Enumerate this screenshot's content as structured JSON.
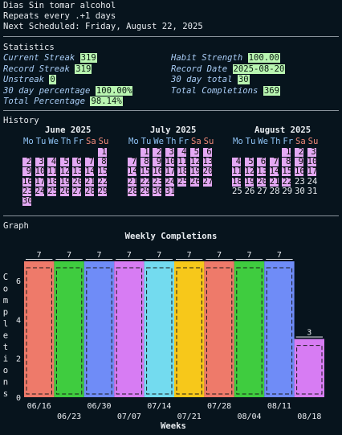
{
  "header": {
    "title": "Dias Sin tomar alcohol",
    "repeat": "Repeats every .+1 days",
    "next": "Next Scheduled: Friday, August 22, 2025"
  },
  "stats": {
    "section_title": "Statistics",
    "left": [
      {
        "label": "Current Streak",
        "value": "319"
      },
      {
        "label": "Record Streak",
        "value": "319"
      },
      {
        "label": "Unstreak",
        "value": "0"
      },
      {
        "label": "30 day percentage",
        "value": "100.00%"
      },
      {
        "label": "Total Percentage",
        "value": "98.14%"
      }
    ],
    "right": [
      {
        "label": "Habit Strength",
        "value": "100.00"
      },
      {
        "label": "Record Date",
        "value": "2025-08-20"
      },
      {
        "label": "30 day total",
        "value": "30"
      },
      {
        "label": "Total Completions",
        "value": "369"
      }
    ]
  },
  "history": {
    "section_title": "History",
    "dow": [
      "Mo",
      "Tu",
      "We",
      "Th",
      "Fr",
      "Sa",
      "Su"
    ],
    "months": [
      {
        "title": "June 2025",
        "start": 6,
        "days": 30,
        "done_through": 30
      },
      {
        "title": "July 2025",
        "start": 1,
        "days": 31,
        "done_through": 31
      },
      {
        "title": "August 2025",
        "start": 4,
        "days": 31,
        "done_through": 22
      }
    ]
  },
  "graph": {
    "section_title": "Graph"
  },
  "chart_data": {
    "type": "bar",
    "title": "Weekly Completions",
    "xlabel": "Weeks",
    "ylabel": "Completions",
    "categories": [
      "06/16",
      "06/23",
      "06/30",
      "07/07",
      "07/14",
      "07/21",
      "07/28",
      "08/04",
      "08/11",
      "08/18"
    ],
    "values": [
      7,
      7,
      7,
      7,
      7,
      7,
      7,
      7,
      7,
      3
    ],
    "colors": [
      "#ee7a6a",
      "#3fcc3f",
      "#6f8cf7",
      "#d77cf3",
      "#73dbef",
      "#f7c81a",
      "#ee7a6a",
      "#3fcc3f",
      "#6f8cf7",
      "#d77cf3"
    ],
    "yticks": [
      0,
      2,
      4,
      6
    ],
    "ylim": [
      0,
      7
    ]
  }
}
